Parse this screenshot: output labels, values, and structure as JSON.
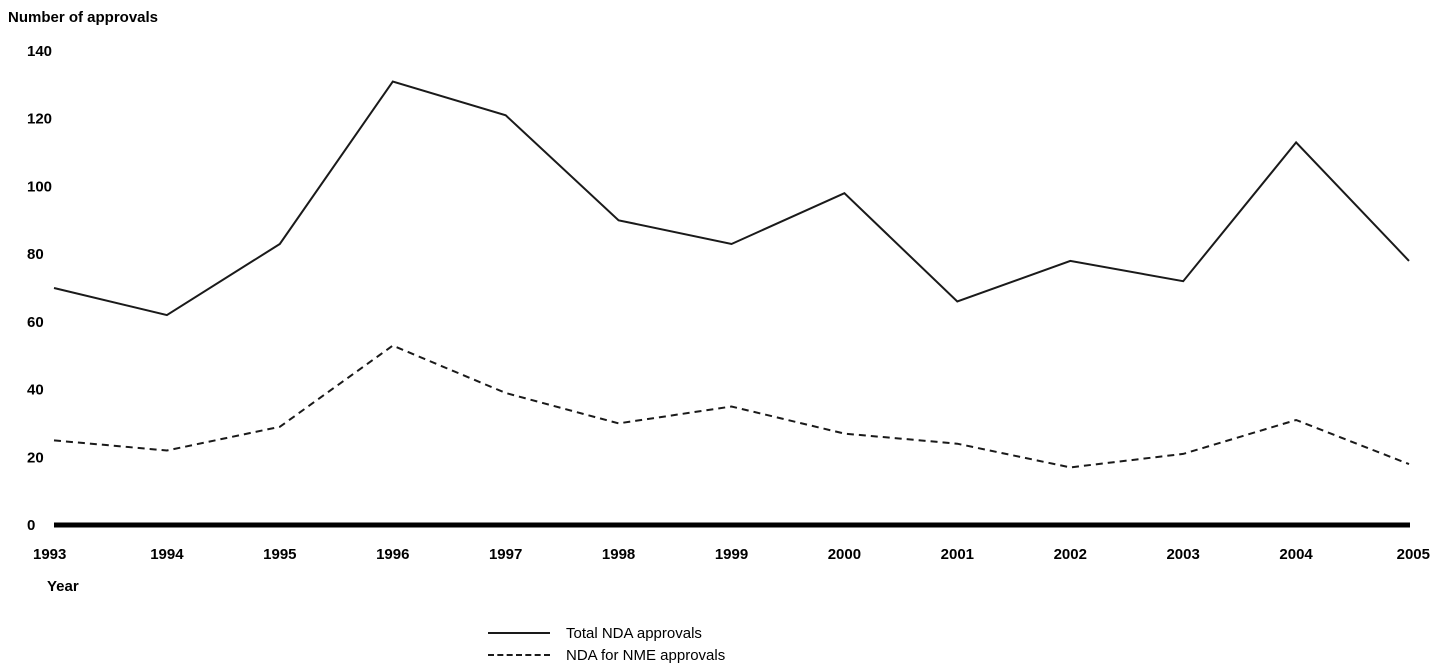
{
  "chart_data": {
    "type": "line",
    "ylabel": "Number of approvals",
    "xlabel": "Year",
    "x": [
      "1993",
      "1994",
      "1995",
      "1996",
      "1997",
      "1998",
      "1999",
      "2000",
      "2001",
      "2002",
      "2003",
      "2004",
      "2005"
    ],
    "yticks": [
      "0",
      "20",
      "40",
      "60",
      "80",
      "100",
      "120",
      "140"
    ],
    "ylim": [
      0,
      140
    ],
    "series": [
      {
        "name": "Total NDA approvals",
        "style": "solid",
        "values": [
          70,
          62,
          83,
          131,
          121,
          90,
          83,
          98,
          66,
          78,
          72,
          113,
          78
        ]
      },
      {
        "name": "NDA for NME approvals",
        "style": "dashed",
        "values": [
          25,
          22,
          29,
          53,
          39,
          30,
          35,
          27,
          24,
          17,
          21,
          31,
          18
        ]
      }
    ],
    "grid": false,
    "legend_position": "bottom-center",
    "line_color": "#1a1a1a"
  }
}
